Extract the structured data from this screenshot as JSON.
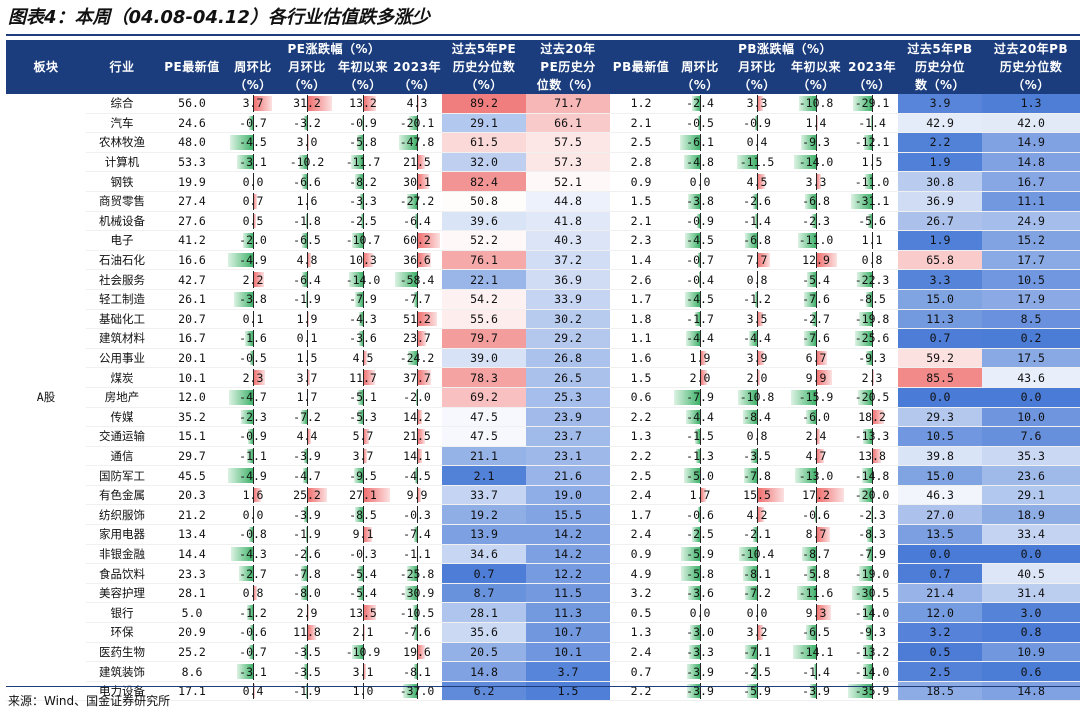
{
  "title": "图表4：本周（04.08-04.12）各行业估值跌多涨少",
  "source": "来源：Wind、国金证券研究所",
  "header": {
    "block": "板块",
    "industry": "行业",
    "pe_latest": "PE最新值",
    "pe_group": "PE涨跌幅（%）",
    "pe_wow": "周环比",
    "pe_mom": "月环比",
    "pe_ytd": "年初以来",
    "pe_2023": "2023年",
    "pe_5y_1": "过去5年PE",
    "pe_5y_2": "历史分位数",
    "pe_5y_3": "（%）",
    "pe_20y_1": "过去20年",
    "pe_20y_2": "PE历史分",
    "pe_20y_3": "位数（%）",
    "pb_latest": "PB最新值",
    "pb_group": "PB涨跌幅（%）",
    "pb_wow": "周环比",
    "pb_mom": "月环比",
    "pb_ytd": "年初以来",
    "pb_2023": "2023年",
    "pb_5y_1": "过去5年PB",
    "pb_5y_2": "历史分位",
    "pb_5y_3": "数（%）",
    "pb_20y_1": "过去20年PB",
    "pb_20y_2": "历史分位数",
    "pb_20y_3": "（%）",
    "unit": "（%）"
  },
  "block_label": "A股",
  "colors": {
    "header_bg": "#1b3d7d",
    "red": "#f06a6a",
    "blue": "#5a86d6",
    "green": "#3fb26a"
  },
  "rows": [
    [
      "综合",
      "56.0",
      "3.7",
      "31.2",
      "13.2",
      "4.3",
      "89.2",
      "71.7",
      "1.2",
      "-2.4",
      "3.3",
      "-10.8",
      "-29.1",
      "3.9",
      "1.3"
    ],
    [
      "汽车",
      "24.6",
      "-0.7",
      "-3.2",
      "-0.9",
      "-20.1",
      "29.1",
      "66.1",
      "2.1",
      "-0.5",
      "-0.9",
      "1.4",
      "-1.4",
      "42.9",
      "42.0"
    ],
    [
      "农林牧渔",
      "48.0",
      "-4.5",
      "3.0",
      "-5.8",
      "-47.8",
      "61.5",
      "57.5",
      "2.5",
      "-6.1",
      "0.4",
      "-9.3",
      "-12.1",
      "2.2",
      "14.9"
    ],
    [
      "计算机",
      "53.3",
      "-3.1",
      "-10.2",
      "-11.7",
      "21.5",
      "32.0",
      "57.3",
      "2.8",
      "-4.8",
      "-11.5",
      "-14.0",
      "1.5",
      "1.9",
      "14.8"
    ],
    [
      "钢铁",
      "19.9",
      "0.0",
      "-6.6",
      "-8.2",
      "30.1",
      "82.4",
      "52.1",
      "0.9",
      "0.0",
      "4.5",
      "3.3",
      "-11.0",
      "30.8",
      "16.7"
    ],
    [
      "商贸零售",
      "27.4",
      "0.7",
      "1.6",
      "-3.3",
      "-27.2",
      "50.8",
      "44.8",
      "1.5",
      "-3.8",
      "-2.6",
      "-6.8",
      "-31.1",
      "36.9",
      "11.1"
    ],
    [
      "机械设备",
      "27.6",
      "0.5",
      "-1.8",
      "-2.5",
      "-6.4",
      "39.6",
      "41.8",
      "2.1",
      "-0.9",
      "-1.4",
      "-2.3",
      "-5.6",
      "26.7",
      "24.9"
    ],
    [
      "电子",
      "41.2",
      "-2.0",
      "-6.5",
      "-10.7",
      "60.2",
      "52.2",
      "40.3",
      "2.3",
      "-4.5",
      "-6.8",
      "-11.0",
      "1.1",
      "1.9",
      "15.2"
    ],
    [
      "石油石化",
      "16.6",
      "-4.9",
      "4.8",
      "10.3",
      "36.6",
      "76.1",
      "37.2",
      "1.4",
      "-0.7",
      "7.7",
      "12.9",
      "0.8",
      "65.8",
      "17.7"
    ],
    [
      "社会服务",
      "42.7",
      "2.2",
      "-6.4",
      "-14.0",
      "-58.4",
      "22.1",
      "36.9",
      "2.6",
      "-0.4",
      "0.8",
      "-5.4",
      "-22.3",
      "3.3",
      "10.5"
    ],
    [
      "轻工制造",
      "26.1",
      "-3.8",
      "-1.9",
      "-7.9",
      "-7.7",
      "54.2",
      "33.9",
      "1.7",
      "-4.5",
      "-1.2",
      "-7.6",
      "-8.5",
      "15.0",
      "17.9"
    ],
    [
      "基础化工",
      "20.7",
      "0.1",
      "1.9",
      "-4.3",
      "51.2",
      "55.6",
      "30.2",
      "1.8",
      "-1.7",
      "3.5",
      "-2.7",
      "-19.8",
      "11.3",
      "8.5"
    ],
    [
      "建筑材料",
      "16.7",
      "-1.6",
      "0.1",
      "-3.6",
      "23.7",
      "79.7",
      "29.2",
      "1.1",
      "-4.4",
      "-4.4",
      "-7.6",
      "-25.6",
      "0.7",
      "0.2"
    ],
    [
      "公用事业",
      "20.1",
      "-0.5",
      "1.5",
      "4.5",
      "-24.2",
      "39.0",
      "26.8",
      "1.6",
      "1.9",
      "3.9",
      "6.7",
      "-9.3",
      "59.2",
      "17.5"
    ],
    [
      "煤炭",
      "10.1",
      "2.3",
      "3.7",
      "11.7",
      "37.7",
      "78.3",
      "26.5",
      "1.5",
      "2.0",
      "2.0",
      "9.9",
      "2.3",
      "85.5",
      "43.6"
    ],
    [
      "房地产",
      "12.0",
      "-4.7",
      "1.7",
      "-5.1",
      "-2.0",
      "69.2",
      "25.3",
      "0.6",
      "-7.9",
      "-10.8",
      "-15.9",
      "-20.5",
      "0.0",
      "0.0"
    ],
    [
      "传媒",
      "35.2",
      "-2.3",
      "-7.2",
      "-5.3",
      "14.2",
      "47.5",
      "23.9",
      "2.2",
      "-4.4",
      "-8.4",
      "-6.0",
      "18.2",
      "29.3",
      "10.0"
    ],
    [
      "交通运输",
      "15.1",
      "-0.9",
      "4.4",
      "5.7",
      "21.5",
      "47.5",
      "23.7",
      "1.3",
      "-1.5",
      "0.8",
      "2.4",
      "-13.3",
      "10.5",
      "7.6"
    ],
    [
      "通信",
      "29.7",
      "-1.1",
      "-3.9",
      "3.7",
      "14.1",
      "21.1",
      "23.1",
      "2.2",
      "-1.3",
      "-3.5",
      "4.7",
      "13.8",
      "39.8",
      "35.3"
    ],
    [
      "国防军工",
      "45.5",
      "-4.9",
      "-4.7",
      "-9.5",
      "-4.5",
      "2.1",
      "21.6",
      "2.5",
      "-5.0",
      "-7.8",
      "-13.0",
      "-14.8",
      "15.0",
      "23.6"
    ],
    [
      "有色金属",
      "20.3",
      "1.6",
      "25.2",
      "27.1",
      "9.9",
      "33.7",
      "19.0",
      "2.4",
      "1.7",
      "15.5",
      "17.2",
      "-20.0",
      "46.3",
      "29.1"
    ],
    [
      "纺织服饰",
      "21.2",
      "0.0",
      "-3.9",
      "-8.5",
      "-0.3",
      "19.2",
      "15.5",
      "1.7",
      "-0.6",
      "4.2",
      "-0.6",
      "-2.3",
      "27.0",
      "18.9"
    ],
    [
      "家用电器",
      "13.4",
      "-0.8",
      "-1.9",
      "9.1",
      "-7.4",
      "13.9",
      "14.2",
      "2.4",
      "-2.5",
      "-2.1",
      "8.7",
      "-8.3",
      "13.5",
      "33.4"
    ],
    [
      "非银金融",
      "14.4",
      "-4.3",
      "-2.6",
      "-0.3",
      "-1.1",
      "34.6",
      "14.2",
      "0.9",
      "-5.9",
      "-10.4",
      "-8.7",
      "-7.9",
      "0.0",
      "0.0"
    ],
    [
      "食品饮料",
      "23.3",
      "-2.7",
      "-7.8",
      "-5.4",
      "-25.8",
      "0.7",
      "12.2",
      "4.9",
      "-5.8",
      "-8.1",
      "-5.8",
      "-19.0",
      "0.7",
      "40.5"
    ],
    [
      "美容护理",
      "28.1",
      "0.8",
      "-8.0",
      "-5.4",
      "-30.9",
      "8.7",
      "11.5",
      "3.2",
      "-3.6",
      "-7.2",
      "-11.6",
      "-30.5",
      "21.4",
      "31.4"
    ],
    [
      "银行",
      "5.0",
      "-1.2",
      "2.9",
      "13.5",
      "-10.5",
      "28.1",
      "11.3",
      "0.5",
      "0.0",
      "0.0",
      "9.3",
      "-14.0",
      "12.0",
      "3.0"
    ],
    [
      "环保",
      "20.9",
      "-0.6",
      "11.8",
      "2.1",
      "-7.6",
      "35.6",
      "10.7",
      "1.3",
      "-3.0",
      "3.2",
      "-6.5",
      "-9.3",
      "3.2",
      "0.8"
    ],
    [
      "医药生物",
      "25.2",
      "-0.7",
      "-3.5",
      "-10.9",
      "19.6",
      "20.5",
      "10.1",
      "2.4",
      "-3.3",
      "-7.1",
      "-14.1",
      "-13.2",
      "0.5",
      "10.9"
    ],
    [
      "建筑装饰",
      "8.6",
      "-3.1",
      "-3.5",
      "3.1",
      "-8.1",
      "14.8",
      "3.7",
      "0.7",
      "-3.9",
      "-2.5",
      "-1.4",
      "-14.0",
      "2.5",
      "0.6"
    ],
    [
      "电力设备",
      "17.1",
      "0.4",
      "-1.9",
      "1.0",
      "-37.0",
      "6.2",
      "1.5",
      "2.2",
      "-3.9",
      "-5.9",
      "-3.9",
      "-35.9",
      "18.5",
      "14.8"
    ]
  ]
}
